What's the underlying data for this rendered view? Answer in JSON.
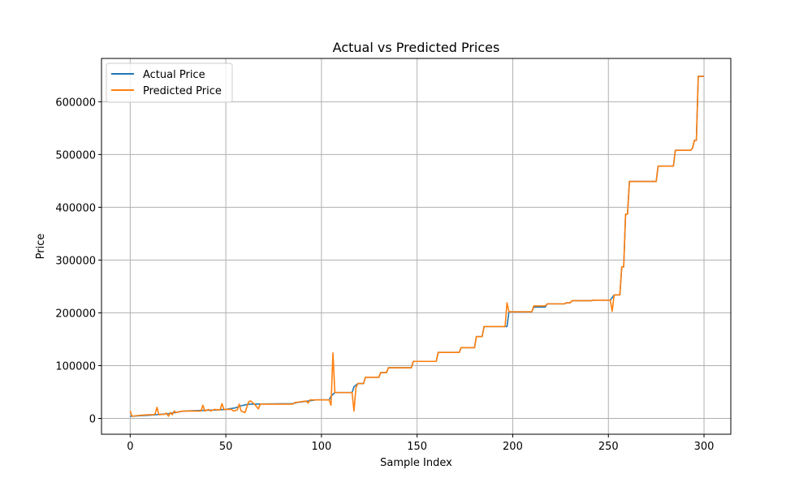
{
  "chart_data": {
    "type": "line",
    "title": "Actual vs Predicted Prices",
    "xlabel": "Sample Index",
    "ylabel": "Price",
    "xlim": [
      -15,
      314
    ],
    "ylim": [
      -30000,
      682000
    ],
    "xticks": [
      0,
      50,
      100,
      150,
      200,
      250,
      300
    ],
    "yticks": [
      0,
      100000,
      200000,
      300000,
      400000,
      500000,
      600000
    ],
    "grid": true,
    "legend_position": "top-left",
    "series": [
      {
        "name": "Actual Price",
        "color": "#1f77b4",
        "points": [
          [
            0,
            4000
          ],
          [
            5,
            5000
          ],
          [
            10,
            6000
          ],
          [
            15,
            7500
          ],
          [
            20,
            9000
          ],
          [
            25,
            12000
          ],
          [
            28,
            14000
          ],
          [
            45,
            16000
          ],
          [
            50,
            17000
          ],
          [
            55,
            20000
          ],
          [
            58,
            24000
          ],
          [
            62,
            27000
          ],
          [
            85,
            28000
          ],
          [
            87,
            30000
          ],
          [
            93,
            33000
          ],
          [
            97,
            35000
          ],
          [
            104,
            35000
          ],
          [
            105,
            42000
          ],
          [
            107,
            49000
          ],
          [
            116,
            49000
          ],
          [
            117,
            60000
          ],
          [
            119,
            66000
          ],
          [
            122,
            66000
          ],
          [
            123,
            78000
          ],
          [
            130,
            78000
          ],
          [
            131,
            87000
          ],
          [
            134,
            87000
          ],
          [
            135,
            96000
          ],
          [
            147,
            96000
          ],
          [
            148,
            108000
          ],
          [
            160,
            108000
          ],
          [
            161,
            125000
          ],
          [
            172,
            125000
          ],
          [
            173,
            134000
          ],
          [
            180,
            134000
          ],
          [
            181,
            155000
          ],
          [
            184,
            155000
          ],
          [
            185,
            174000
          ],
          [
            197,
            174000
          ],
          [
            198,
            202000
          ],
          [
            210,
            202000
          ],
          [
            211,
            211000
          ],
          [
            217,
            211000
          ],
          [
            218,
            217000
          ],
          [
            227,
            217000
          ],
          [
            228,
            219000
          ],
          [
            230,
            219000
          ],
          [
            231,
            223000
          ],
          [
            241,
            223000
          ],
          [
            242,
            224000
          ],
          [
            251,
            224000
          ],
          [
            252,
            229000
          ],
          [
            253,
            234000
          ],
          [
            256,
            234000
          ],
          [
            257,
            287000
          ],
          [
            258,
            287000
          ],
          [
            259,
            387000
          ],
          [
            260,
            387000
          ],
          [
            261,
            449000
          ],
          [
            275,
            449000
          ],
          [
            276,
            478000
          ],
          [
            284,
            478000
          ],
          [
            285,
            508000
          ],
          [
            293,
            508000
          ],
          [
            294,
            512000
          ],
          [
            295,
            527000
          ],
          [
            296,
            527000
          ],
          [
            297,
            648000
          ],
          [
            300,
            648000
          ]
        ]
      },
      {
        "name": "Predicted Price",
        "color": "#ff7f0e",
        "points": [
          [
            0,
            14000
          ],
          [
            1,
            4000
          ],
          [
            3,
            5000
          ],
          [
            6,
            6000
          ],
          [
            10,
            7000
          ],
          [
            12,
            7000
          ],
          [
            13,
            8000
          ],
          [
            14,
            21000
          ],
          [
            15,
            7000
          ],
          [
            18,
            8000
          ],
          [
            19,
            10000
          ],
          [
            20,
            4000
          ],
          [
            21,
            11000
          ],
          [
            22,
            7000
          ],
          [
            23,
            14000
          ],
          [
            24,
            11000
          ],
          [
            26,
            13000
          ],
          [
            28,
            14000
          ],
          [
            37,
            14000
          ],
          [
            38,
            25000
          ],
          [
            39,
            14000
          ],
          [
            41,
            17000
          ],
          [
            42,
            14000
          ],
          [
            44,
            17000
          ],
          [
            47,
            16000
          ],
          [
            48,
            28000
          ],
          [
            49,
            17000
          ],
          [
            53,
            17000
          ],
          [
            54,
            14000
          ],
          [
            56,
            16000
          ],
          [
            57,
            27000
          ],
          [
            58,
            14000
          ],
          [
            60,
            11000
          ],
          [
            62,
            32000
          ],
          [
            63,
            33000
          ],
          [
            65,
            27000
          ],
          [
            67,
            18000
          ],
          [
            68,
            27000
          ],
          [
            85,
            27000
          ],
          [
            86,
            30000
          ],
          [
            90,
            32000
          ],
          [
            92,
            33000
          ],
          [
            93,
            29000
          ],
          [
            94,
            35000
          ],
          [
            104,
            35000
          ],
          [
            105,
            25000
          ],
          [
            106,
            124000
          ],
          [
            107,
            49000
          ],
          [
            116,
            49000
          ],
          [
            117,
            14000
          ],
          [
            118,
            58000
          ],
          [
            119,
            66000
          ],
          [
            122,
            66000
          ],
          [
            123,
            78000
          ],
          [
            130,
            78000
          ],
          [
            131,
            87000
          ],
          [
            134,
            87000
          ],
          [
            135,
            96000
          ],
          [
            147,
            96000
          ],
          [
            148,
            108000
          ],
          [
            160,
            108000
          ],
          [
            161,
            125000
          ],
          [
            172,
            125000
          ],
          [
            173,
            134000
          ],
          [
            180,
            134000
          ],
          [
            181,
            155000
          ],
          [
            184,
            155000
          ],
          [
            185,
            174000
          ],
          [
            196,
            174000
          ],
          [
            197,
            219000
          ],
          [
            198,
            202000
          ],
          [
            210,
            202000
          ],
          [
            211,
            213000
          ],
          [
            217,
            213000
          ],
          [
            218,
            217000
          ],
          [
            227,
            217000
          ],
          [
            228,
            219000
          ],
          [
            230,
            219000
          ],
          [
            231,
            223000
          ],
          [
            241,
            223000
          ],
          [
            242,
            224000
          ],
          [
            251,
            224000
          ],
          [
            252,
            203000
          ],
          [
            253,
            234000
          ],
          [
            256,
            234000
          ],
          [
            257,
            287000
          ],
          [
            258,
            287000
          ],
          [
            259,
            387000
          ],
          [
            260,
            387000
          ],
          [
            261,
            449000
          ],
          [
            275,
            449000
          ],
          [
            276,
            478000
          ],
          [
            284,
            478000
          ],
          [
            285,
            508000
          ],
          [
            293,
            508000
          ],
          [
            294,
            512000
          ],
          [
            295,
            527000
          ],
          [
            296,
            527000
          ],
          [
            297,
            648000
          ],
          [
            300,
            648000
          ]
        ]
      }
    ]
  }
}
